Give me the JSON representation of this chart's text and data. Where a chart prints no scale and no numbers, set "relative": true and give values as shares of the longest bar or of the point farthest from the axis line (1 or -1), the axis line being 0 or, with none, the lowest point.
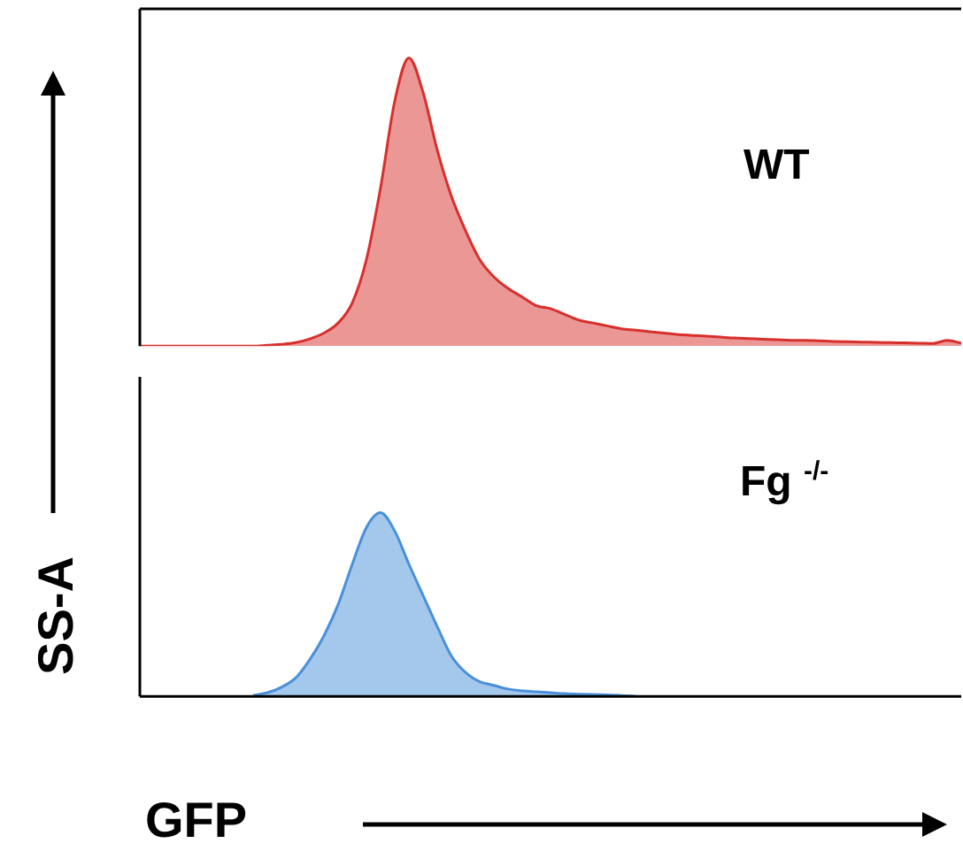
{
  "chart_data": [
    {
      "type": "area",
      "relative": true,
      "grid": false,
      "legend": false,
      "ylabel": "SS-A",
      "categories": [
        null,
        null,
        null,
        null,
        null,
        null,
        null,
        null,
        null,
        null,
        null,
        null,
        null,
        null,
        null,
        null,
        null,
        null,
        null,
        null,
        null,
        null,
        null,
        null,
        null,
        null,
        null,
        null,
        null,
        null,
        null,
        null,
        null,
        null,
        null,
        null,
        null,
        null,
        null,
        null,
        null,
        null,
        null,
        null,
        null,
        null,
        null,
        null,
        null,
        null,
        null,
        null,
        null,
        null,
        null,
        null,
        null,
        null,
        null
      ],
      "series": [
        {
          "name": "WT",
          "color": "#d7302c",
          "values": [
            0,
            0,
            0,
            0,
            0,
            0,
            0,
            0,
            0,
            0.003,
            0.006,
            0.012,
            0.025,
            0.045,
            0.08,
            0.15,
            0.3,
            0.55,
            0.85,
            1,
            0.88,
            0.68,
            0.52,
            0.4,
            0.3,
            0.24,
            0.2,
            0.17,
            0.14,
            0.13,
            0.11,
            0.09,
            0.08,
            0.07,
            0.06,
            0.055,
            0.05,
            0.045,
            0.04,
            0.037,
            0.034,
            0.031,
            0.028,
            0.026,
            0.024,
            0.022,
            0.02,
            0.02,
            0.018,
            0.016,
            0.015,
            0.014,
            0.013,
            0.012,
            0.011,
            0.01,
            0.009,
            0.02,
            0.01
          ]
        }
      ]
    },
    {
      "type": "area",
      "relative": true,
      "grid": false,
      "legend": false,
      "xlabel": "GFP",
      "categories": [
        null,
        null,
        null,
        null,
        null,
        null,
        null,
        null,
        null,
        null,
        null,
        null,
        null,
        null,
        null,
        null,
        null,
        null,
        null,
        null,
        null,
        null,
        null,
        null,
        null,
        null,
        null,
        null,
        null,
        null,
        null,
        null,
        null,
        null,
        null,
        null,
        null,
        null,
        null,
        null,
        null,
        null,
        null,
        null,
        null,
        null,
        null,
        null,
        null,
        null,
        null,
        null,
        null,
        null,
        null,
        null,
        null,
        null,
        null
      ],
      "series": [
        {
          "name": "Fg $^{-/-}$",
          "color": "#4a90d9",
          "values": [
            null,
            null,
            null,
            null,
            null,
            null,
            null,
            null,
            0.005,
            0.02,
            0.05,
            0.1,
            0.2,
            0.33,
            0.5,
            0.72,
            0.92,
            1,
            0.9,
            0.72,
            0.55,
            0.38,
            0.22,
            0.13,
            0.08,
            0.06,
            0.04,
            0.03,
            0.025,
            0.02,
            0.015,
            0.012,
            0.01,
            0.008,
            0.005,
            0,
            null,
            null,
            null,
            null,
            null,
            null,
            null,
            null,
            null,
            null,
            null,
            null,
            null,
            null,
            null,
            null,
            null,
            null,
            null,
            null,
            null,
            null,
            null
          ]
        }
      ]
    }
  ]
}
